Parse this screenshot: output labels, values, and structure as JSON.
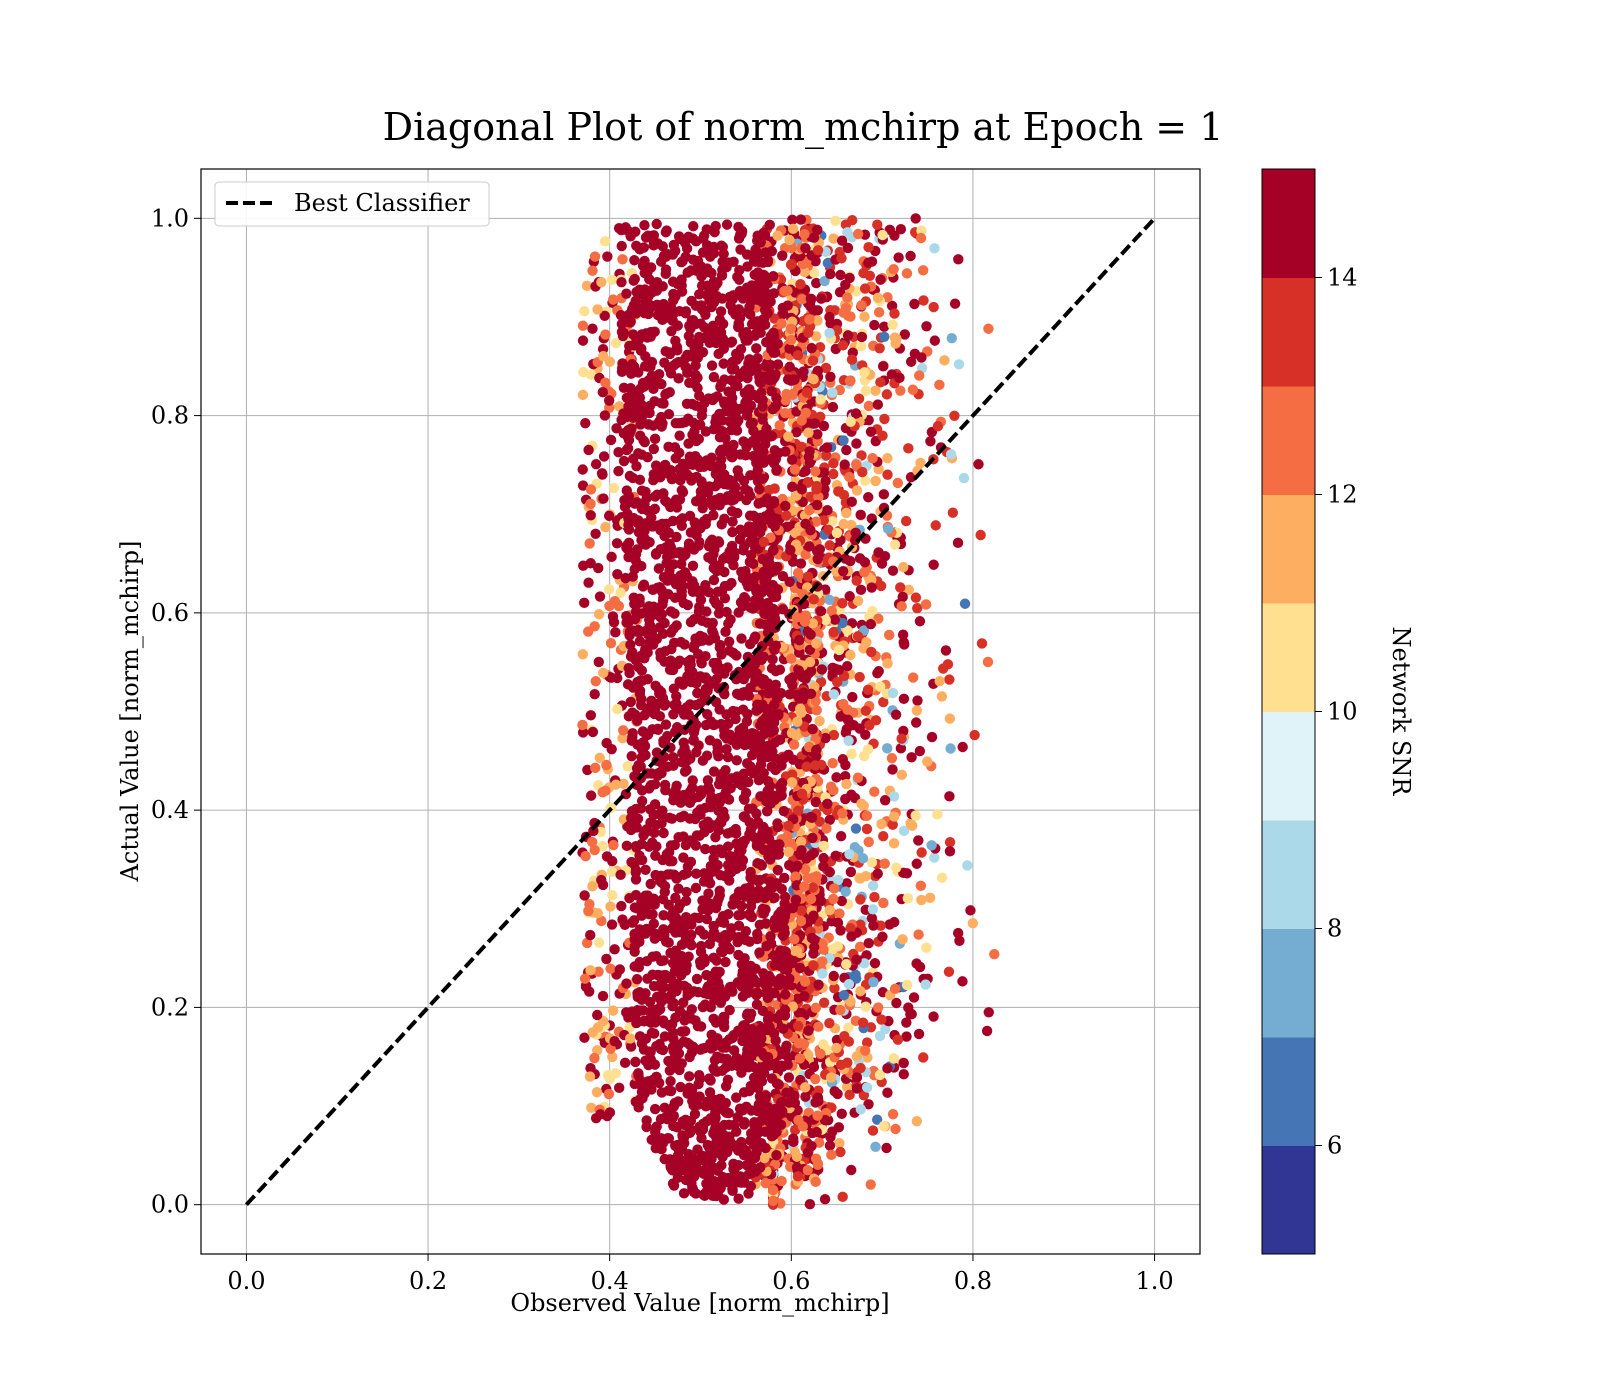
{
  "chart_data": {
    "type": "scatter",
    "title": "Diagonal Plot of norm_mchirp at Epoch = 1",
    "xlabel": "Observed Value [norm_mchirp]",
    "ylabel": "Actual Value [norm_mchirp]",
    "xlim": [
      -0.05,
      1.05
    ],
    "ylim": [
      -0.05,
      1.05
    ],
    "xticks": [
      0.0,
      0.2,
      0.4,
      0.6,
      0.8,
      1.0
    ],
    "yticks": [
      0.0,
      0.2,
      0.4,
      0.6,
      0.8,
      1.0
    ],
    "xtick_labels": [
      "0.0",
      "0.2",
      "0.4",
      "0.6",
      "0.8",
      "1.0"
    ],
    "ytick_labels": [
      "0.0",
      "0.2",
      "0.4",
      "0.6",
      "0.8",
      "1.0"
    ],
    "grid": true,
    "legend": {
      "placement": "top-left",
      "entries": [
        "Best Classifier"
      ]
    },
    "reference_line": {
      "name": "Best Classifier",
      "x": [
        0.0,
        1.0
      ],
      "y": [
        0.0,
        1.0
      ],
      "style": "dashed",
      "color": "#000000"
    },
    "scatter_summary": {
      "dense_core_x_range": [
        0.41,
        0.6
      ],
      "outer_x_range": [
        0.37,
        0.83
      ],
      "y_range": [
        0.0,
        1.0
      ],
      "color_by": "Network SNR"
    },
    "colorbar": {
      "label": "Network SNR",
      "range": [
        5,
        15
      ],
      "ticks": [
        6,
        8,
        10,
        12,
        14
      ],
      "tick_labels": [
        "6",
        "8",
        "10",
        "12",
        "14"
      ],
      "colormap": "RdYlBu_r",
      "bins": [
        "#313695",
        "#4575b4",
        "#74add1",
        "#abd9e9",
        "#e0f3f8",
        "#fee090",
        "#fdae61",
        "#f46d43",
        "#d73027",
        "#a50026"
      ]
    }
  }
}
